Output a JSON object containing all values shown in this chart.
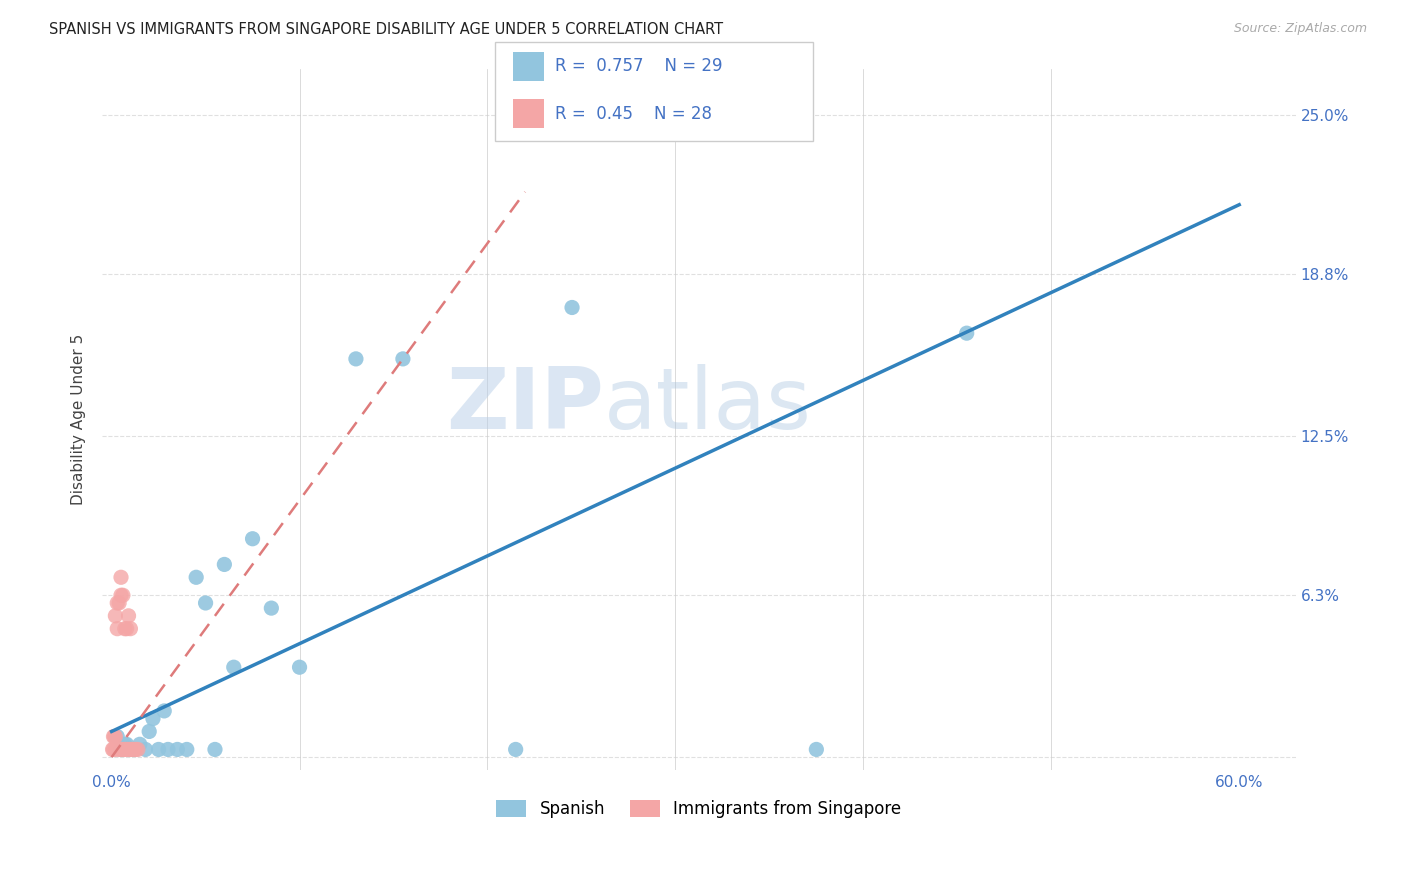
{
  "title": "SPANISH VS IMMIGRANTS FROM SINGAPORE DISABILITY AGE UNDER 5 CORRELATION CHART",
  "source": "Source: ZipAtlas.com",
  "ylabel_label": "Disability Age Under 5",
  "x_ticks": [
    0.0,
    0.1,
    0.2,
    0.3,
    0.4,
    0.5,
    0.6
  ],
  "x_tick_labels": [
    "0.0%",
    "",
    "",
    "",
    "",
    "",
    "60.0%"
  ],
  "y_ticks": [
    0.0,
    0.063,
    0.125,
    0.188,
    0.25
  ],
  "y_tick_labels": [
    "",
    "6.3%",
    "12.5%",
    "18.8%",
    "25.0%"
  ],
  "xlim": [
    -0.005,
    0.63
  ],
  "ylim": [
    -0.005,
    0.268
  ],
  "blue_R": 0.757,
  "blue_N": 29,
  "pink_R": 0.45,
  "pink_N": 28,
  "blue_color": "#92c5de",
  "pink_color": "#f4a6a6",
  "blue_line_color": "#3182bd",
  "pink_line_color": "#de7b7b",
  "watermark_zip": "ZIP",
  "watermark_atlas": "atlas",
  "legend_label_blue": "Spanish",
  "legend_label_pink": "Immigrants from Singapore",
  "blue_scatter_x": [
    0.003,
    0.005,
    0.007,
    0.008,
    0.01,
    0.012,
    0.015,
    0.018,
    0.02,
    0.022,
    0.025,
    0.028,
    0.03,
    0.035,
    0.04,
    0.045,
    0.05,
    0.055,
    0.06,
    0.065,
    0.075,
    0.085,
    0.1,
    0.13,
    0.155,
    0.215,
    0.245,
    0.375,
    0.455
  ],
  "blue_scatter_y": [
    0.008,
    0.003,
    0.005,
    0.005,
    0.003,
    0.003,
    0.005,
    0.003,
    0.01,
    0.015,
    0.003,
    0.018,
    0.003,
    0.003,
    0.003,
    0.07,
    0.06,
    0.003,
    0.075,
    0.035,
    0.085,
    0.058,
    0.035,
    0.155,
    0.155,
    0.003,
    0.175,
    0.003,
    0.165
  ],
  "pink_scatter_x": [
    0.0005,
    0.001,
    0.001,
    0.0015,
    0.002,
    0.002,
    0.002,
    0.003,
    0.003,
    0.004,
    0.004,
    0.005,
    0.005,
    0.005,
    0.006,
    0.006,
    0.007,
    0.007,
    0.008,
    0.008,
    0.009,
    0.009,
    0.01,
    0.01,
    0.011,
    0.012,
    0.013,
    0.014
  ],
  "pink_scatter_y": [
    0.003,
    0.003,
    0.008,
    0.008,
    0.003,
    0.008,
    0.055,
    0.05,
    0.06,
    0.003,
    0.06,
    0.003,
    0.063,
    0.07,
    0.003,
    0.063,
    0.003,
    0.05,
    0.003,
    0.05,
    0.003,
    0.055,
    0.003,
    0.05,
    0.003,
    0.003,
    0.003,
    0.003
  ],
  "blue_line_x": [
    0.0,
    0.6
  ],
  "blue_line_y": [
    0.01,
    0.215
  ],
  "pink_line_x": [
    0.0,
    0.22
  ],
  "pink_line_y": [
    0.0,
    0.22
  ],
  "grid_color": "#e0e0e0",
  "bg_color": "#ffffff",
  "title_fontsize": 10.5,
  "axis_tick_color": "#4472c4",
  "scatter_size": 120
}
